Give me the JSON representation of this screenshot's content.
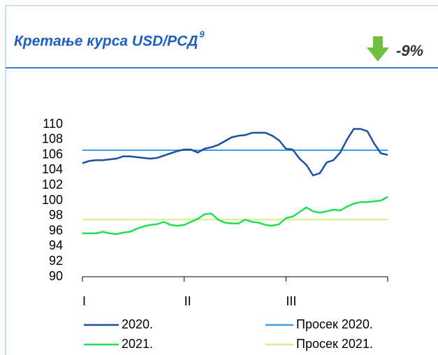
{
  "header": {
    "title": "Кретање курса USD/РСД",
    "footnote": "9",
    "change": "-9%"
  },
  "chart_data": {
    "type": "line",
    "x": [
      0,
      2,
      4,
      6,
      8,
      10,
      12,
      14,
      16,
      18,
      20,
      22,
      24,
      26,
      28,
      30,
      32,
      34,
      36,
      38,
      40,
      42,
      44,
      46,
      48,
      50,
      52,
      54,
      56,
      58,
      60,
      62,
      64,
      66,
      68,
      70,
      72,
      74,
      76,
      78,
      80,
      82,
      84,
      86,
      88,
      90
    ],
    "series": [
      {
        "name": "2020.",
        "color": "#1f4e9c",
        "values": [
          104.9,
          105.2,
          105.3,
          105.3,
          105.4,
          105.5,
          105.8,
          105.8,
          105.7,
          105.6,
          105.5,
          105.6,
          105.9,
          106.2,
          106.5,
          106.7,
          106.7,
          106.3,
          106.8,
          107.0,
          107.3,
          107.8,
          108.3,
          108.5,
          108.6,
          108.9,
          108.9,
          108.9,
          108.5,
          107.9,
          106.8,
          106.7,
          105.5,
          104.7,
          103.3,
          103.6,
          105.0,
          105.3,
          106.3,
          108.0,
          109.4,
          109.4,
          109.1,
          107.5,
          106.2,
          106.0
        ]
      },
      {
        "name": "2021.",
        "color": "#22dd55",
        "values": [
          95.7,
          95.7,
          95.7,
          95.9,
          95.7,
          95.6,
          95.8,
          95.9,
          96.3,
          96.6,
          96.8,
          96.9,
          97.2,
          96.8,
          96.7,
          96.8,
          97.2,
          97.6,
          98.2,
          98.3,
          97.5,
          97.1,
          97.0,
          97.0,
          97.5,
          97.2,
          97.1,
          96.8,
          96.7,
          96.9,
          97.7,
          97.9,
          98.5,
          99.1,
          98.6,
          98.4,
          98.6,
          98.8,
          98.7,
          99.2,
          99.6,
          99.8,
          99.8,
          99.9,
          100.0,
          100.5
        ]
      }
    ],
    "reference_lines": [
      {
        "name": "Просек 2020.",
        "color": "#3a9ee8",
        "value": 106.6
      },
      {
        "name": "Просек 2021.",
        "color": "#d4f08a",
        "value": 97.5
      }
    ],
    "xlim": [
      0,
      90
    ],
    "xticks": [
      {
        "value": 0,
        "label": "I"
      },
      {
        "value": 30,
        "label": "II"
      },
      {
        "value": 60,
        "label": "III"
      }
    ],
    "ylim": [
      90,
      110
    ],
    "yticks": [
      90,
      92,
      94,
      96,
      98,
      100,
      102,
      104,
      106,
      108,
      110
    ]
  }
}
